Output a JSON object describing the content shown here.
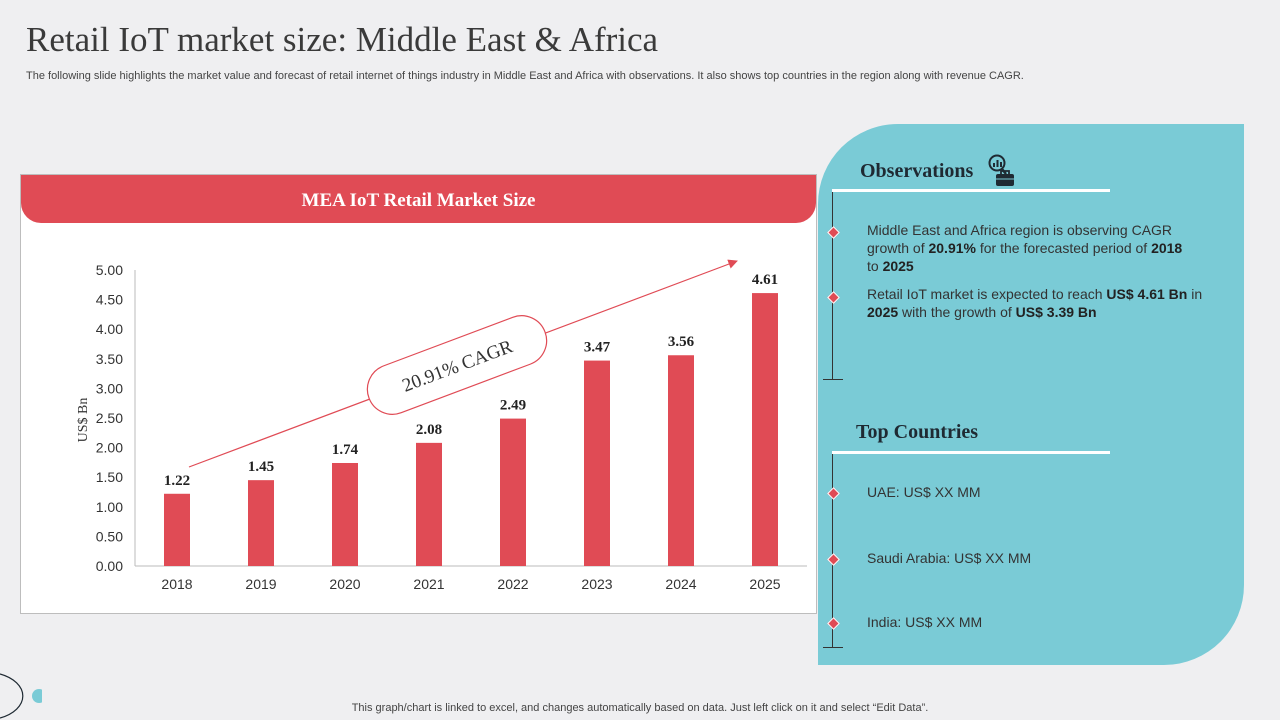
{
  "slide": {
    "title": "Retail IoT market size: Middle East & Africa",
    "subtitle": "The following slide highlights the market value and forecast of retail internet of things industry in Middle East and Africa with observations. It also shows top countries in the region along with revenue CAGR.",
    "footer": "This graph/chart is linked to excel,  and changes automatically based on data. Just left click on it and select “Edit Data”."
  },
  "chart_data": {
    "type": "bar",
    "title": "MEA IoT Retail Market Size",
    "xlabel": "",
    "ylabel": "US$ Bn",
    "categories": [
      "2018",
      "2019",
      "2020",
      "2021",
      "2022",
      "2023",
      "2024",
      "2025"
    ],
    "values": [
      1.22,
      1.45,
      1.74,
      2.08,
      2.49,
      3.47,
      3.56,
      4.61
    ],
    "value_labels": [
      "1.22",
      "1.45",
      "1.74",
      "2.08",
      "2.49",
      "3.47",
      "3.56",
      "4.61"
    ],
    "ylim": [
      0,
      5
    ],
    "yticks": [
      "0.00",
      "0.50",
      "1.00",
      "1.50",
      "2.00",
      "2.50",
      "3.00",
      "3.50",
      "4.00",
      "4.50",
      "5.00"
    ],
    "annotation": "20.91% CAGR",
    "bar_color": "#e04b55"
  },
  "observations": {
    "title": "Observations",
    "icon": "analytics-briefcase-icon",
    "item1": {
      "p1": "Middle East and Africa region is observing CAGR growth of ",
      "b1": "20.91%",
      "p2": " for the forecasted period of ",
      "b2": "2018",
      "p3": " to ",
      "b3": "2025"
    },
    "item2": {
      "p1": "Retail IoT market is expected to reach ",
      "b1": "US$ 4.61 Bn",
      "p2": " in ",
      "b2": "2025",
      "p3": " with the growth of ",
      "b3": "US$ 3.39 Bn"
    }
  },
  "top_countries": {
    "title": "Top Countries",
    "items": [
      "UAE: US$ XX MM",
      "Saudi Arabia: US$ XX MM",
      "India: US$ XX MM"
    ]
  },
  "colors": {
    "accent": "#e04b55",
    "panel": "#7acbd6",
    "background": "#efeff1"
  }
}
